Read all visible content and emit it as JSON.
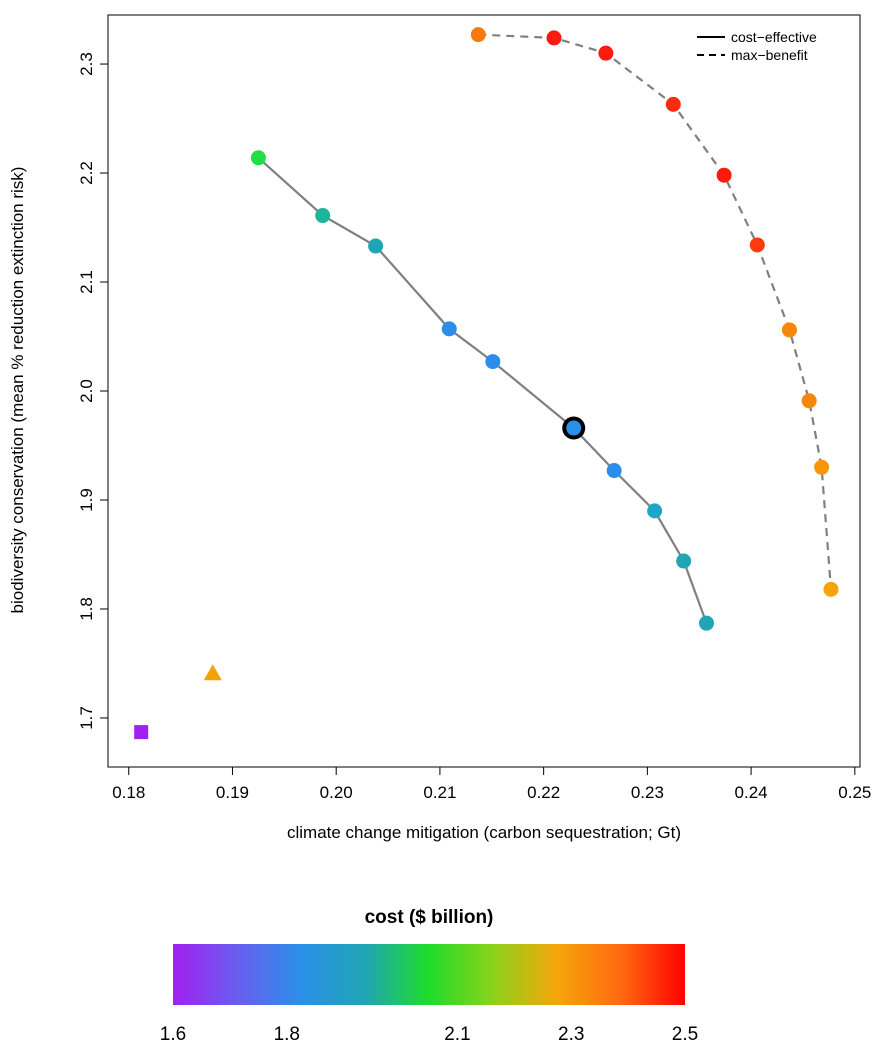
{
  "chart_data": {
    "type": "scatter",
    "xlabel": "climate change mitigation (carbon sequestration; Gt)",
    "ylabel": "biodiversity conservation (mean % reduction extinction risk)",
    "xlim": [
      0.178,
      0.2505
    ],
    "ylim": [
      1.655,
      2.345
    ],
    "x_ticks": [
      0.18,
      0.19,
      0.2,
      0.21,
      0.22,
      0.23,
      0.24,
      0.25
    ],
    "x_tick_labels": [
      "0.18",
      "0.19",
      "0.20",
      "0.21",
      "0.22",
      "0.23",
      "0.24",
      "0.25"
    ],
    "y_ticks": [
      1.7,
      1.8,
      1.9,
      2.0,
      2.1,
      2.2,
      2.3
    ],
    "y_tick_labels": [
      "1.7",
      "1.8",
      "1.9",
      "2.0",
      "2.1",
      "2.2",
      "2.3"
    ],
    "legend": {
      "placement": "top-right",
      "entries": [
        {
          "label": "cost−effective",
          "line_style": "solid"
        },
        {
          "label": "max−benefit",
          "line_style": "dashed"
        }
      ]
    },
    "series": [
      {
        "line_style": "solid",
        "line_color": "#808080",
        "marker": "circle",
        "points": [
          {
            "x": 0.1925,
            "y": 2.214,
            "color": "#22dd44"
          },
          {
            "x": 0.1987,
            "y": 2.161,
            "color": "#1fb59a"
          },
          {
            "x": 0.2038,
            "y": 2.133,
            "color": "#1fa5b4"
          },
          {
            "x": 0.2109,
            "y": 2.057,
            "color": "#2b8fe9"
          },
          {
            "x": 0.2151,
            "y": 2.027,
            "color": "#2b8fe9"
          },
          {
            "x": 0.2229,
            "y": 1.966,
            "color": "#2b8fe9",
            "highlighted": true
          },
          {
            "x": 0.2268,
            "y": 1.927,
            "color": "#2b8fe9"
          },
          {
            "x": 0.2307,
            "y": 1.89,
            "color": "#1fa5c8"
          },
          {
            "x": 0.2335,
            "y": 1.844,
            "color": "#1fa5b4"
          },
          {
            "x": 0.2357,
            "y": 1.787,
            "color": "#1fa5b4"
          }
        ]
      },
      {
        "line_style": "dashed",
        "line_color": "#808080",
        "marker": "circle",
        "points": [
          {
            "x": 0.2137,
            "y": 2.327,
            "color": "#f77a10"
          },
          {
            "x": 0.221,
            "y": 2.324,
            "color": "#ff1a10"
          },
          {
            "x": 0.226,
            "y": 2.31,
            "color": "#ff1a10"
          },
          {
            "x": 0.2325,
            "y": 2.263,
            "color": "#ff2a10"
          },
          {
            "x": 0.2374,
            "y": 2.198,
            "color": "#ff1a10"
          },
          {
            "x": 0.2406,
            "y": 2.134,
            "color": "#ff3a10"
          },
          {
            "x": 0.2437,
            "y": 2.056,
            "color": "#f7860a"
          },
          {
            "x": 0.2456,
            "y": 1.991,
            "color": "#f7860a"
          },
          {
            "x": 0.2468,
            "y": 1.93,
            "color": "#f7940a"
          },
          {
            "x": 0.2477,
            "y": 1.818,
            "color": "#f5a50a"
          }
        ]
      }
    ],
    "extra_points": [
      {
        "x": 0.1812,
        "y": 1.687,
        "marker": "square",
        "color": "#a020f0"
      },
      {
        "x": 0.1881,
        "y": 1.741,
        "marker": "triangle",
        "color": "#f5a10a"
      }
    ],
    "colorbar": {
      "title": "cost ($ billion)",
      "range": [
        1.6,
        2.5
      ],
      "tick_values": [
        1.6,
        1.8,
        2.1,
        2.3,
        2.5
      ],
      "tick_labels": [
        "1.6",
        "1.8",
        "2.1",
        "2.3",
        "2.5"
      ],
      "gradient": [
        "#a020f0",
        "#6a5df0",
        "#2b8fe9",
        "#1fa5b4",
        "#1fdc2a",
        "#8cd21a",
        "#f5a50a",
        "#ff6a10",
        "#ff0000"
      ]
    }
  }
}
